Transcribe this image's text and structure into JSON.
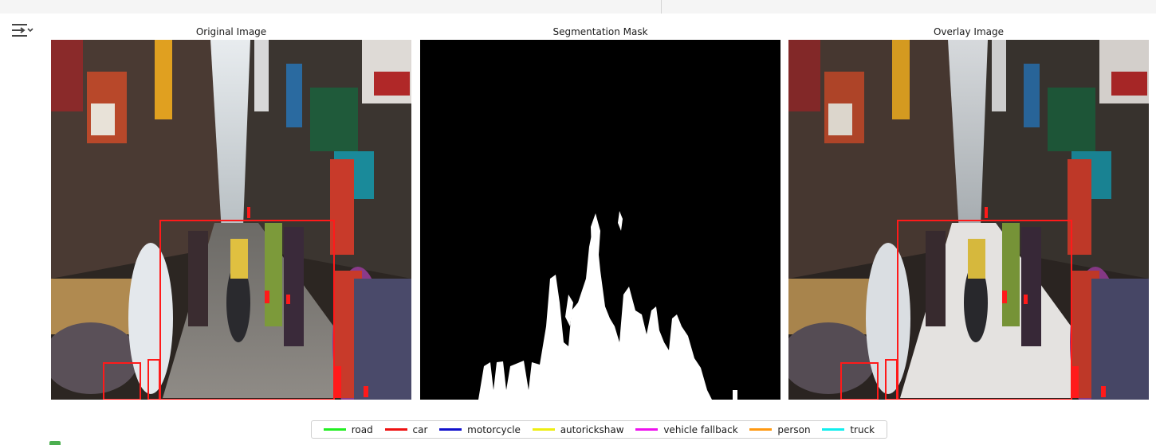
{
  "panels": {
    "original_title": "Original Image",
    "mask_title": "Segmentation Mask",
    "overlay_title": "Overlay Image"
  },
  "toolbar": {
    "output_icon": "output-settings-icon"
  },
  "legend": {
    "items": [
      {
        "label": "road",
        "color": "#22ee22"
      },
      {
        "label": "car",
        "color": "#ee1111"
      },
      {
        "label": "motorcycle",
        "color": "#1111cc"
      },
      {
        "label": "autorickshaw",
        "color": "#eeee11"
      },
      {
        "label": "vehicle fallback",
        "color": "#ee11ee"
      },
      {
        "label": "person",
        "color": "#ff9911"
      },
      {
        "label": "truck",
        "color": "#11eeee"
      }
    ]
  }
}
